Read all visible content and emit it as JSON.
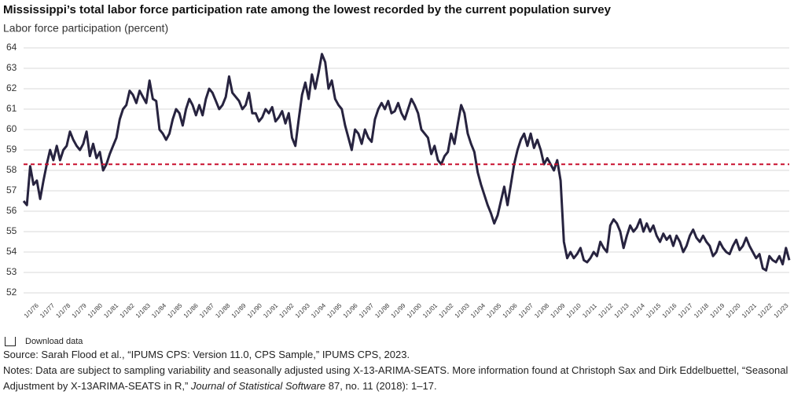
{
  "chart_data": {
    "type": "line",
    "title": "Mississippi’s total labor force participation rate among the lowest recorded by the current population survey",
    "subtitle": "Labor force participation (percent)",
    "x_labels": [
      "1/1/76",
      "1/1/77",
      "1/1/78",
      "1/1/79",
      "1/1/80",
      "1/1/81",
      "1/1/82",
      "1/1/83",
      "1/1/84",
      "1/1/85",
      "1/1/86",
      "1/1/87",
      "1/1/88",
      "1/1/89",
      "1/1/90",
      "1/1/91",
      "1/1/92",
      "1/1/93",
      "1/1/94",
      "1/1/95",
      "1/1/96",
      "1/1/97",
      "1/1/98",
      "1/1/99",
      "1/1/00",
      "1/1/01",
      "1/1/02",
      "1/1/03",
      "1/1/04",
      "1/1/05",
      "1/1/06",
      "1/1/07",
      "1/1/08",
      "1/1/09",
      "1/1/10",
      "1/1/11",
      "1/1/12",
      "1/1/13",
      "1/1/14",
      "1/1/15",
      "1/1/16",
      "1/1/17",
      "1/1/18",
      "1/1/19",
      "1/1/20",
      "1/1/21",
      "1/1/22",
      "1/1/23"
    ],
    "color": "#27233f",
    "values": [
      56.5,
      56.3,
      58.2,
      57.3,
      57.5,
      56.6,
      57.5,
      58.3,
      59.0,
      58.5,
      59.2,
      58.5,
      59.0,
      59.2,
      59.9,
      59.5,
      59.2,
      59.0,
      59.3,
      59.9,
      58.7,
      59.3,
      58.6,
      58.9,
      58.0,
      58.3,
      58.8,
      59.2,
      59.6,
      60.5,
      61.0,
      61.2,
      61.9,
      61.7,
      61.3,
      61.9,
      61.6,
      61.3,
      62.4,
      61.5,
      61.4,
      60.0,
      59.8,
      59.5,
      59.8,
      60.5,
      61.0,
      60.8,
      60.2,
      61.0,
      61.5,
      61.2,
      60.7,
      61.2,
      60.7,
      61.5,
      62.0,
      61.8,
      61.4,
      61.0,
      61.2,
      61.6,
      62.6,
      61.8,
      61.6,
      61.4,
      61.0,
      61.2,
      61.8,
      60.8,
      60.8,
      60.4,
      60.6,
      61.0,
      60.8,
      61.1,
      60.4,
      60.6,
      60.9,
      60.3,
      60.8,
      59.6,
      59.2,
      60.5,
      61.7,
      62.3,
      61.5,
      62.7,
      62.0,
      62.8,
      63.7,
      63.3,
      62.0,
      62.4,
      61.5,
      61.2,
      61.0,
      60.2,
      59.6,
      59.0,
      60.0,
      59.8,
      59.3,
      60.0,
      59.6,
      59.4,
      60.5,
      61.0,
      61.3,
      61.0,
      61.4,
      60.8,
      60.9,
      61.3,
      60.8,
      60.5,
      61.0,
      61.5,
      61.2,
      60.8,
      60.0,
      59.8,
      59.6,
      58.8,
      59.2,
      58.5,
      58.3,
      58.7,
      58.9,
      59.8,
      59.3,
      60.3,
      61.2,
      60.8,
      59.8,
      59.3,
      58.9,
      57.9,
      57.3,
      56.8,
      56.3,
      55.9,
      55.4,
      55.8,
      56.5,
      57.2,
      56.3,
      57.3,
      58.3,
      59.0,
      59.5,
      59.8,
      59.2,
      59.8,
      59.1,
      59.5,
      59.0,
      58.3,
      58.6,
      58.3,
      58.0,
      58.5,
      57.5,
      54.5,
      53.7,
      54.0,
      53.7,
      53.9,
      54.2,
      53.6,
      53.5,
      53.7,
      54.0,
      53.8,
      54.5,
      54.2,
      54.0,
      55.3,
      55.6,
      55.4,
      55.0,
      54.2,
      54.8,
      55.3,
      55.0,
      55.2,
      55.6,
      55.0,
      55.4,
      55.0,
      55.3,
      54.8,
      54.5,
      54.9,
      54.6,
      54.8,
      54.3,
      54.8,
      54.5,
      54.0,
      54.3,
      54.8,
      55.1,
      54.7,
      54.5,
      54.8,
      54.5,
      54.3,
      53.8,
      54.0,
      54.5,
      54.2,
      54.0,
      53.9,
      54.3,
      54.6,
      54.1,
      54.3,
      54.7,
      54.3,
      54.0,
      53.7,
      53.9,
      53.2,
      53.1,
      53.8,
      53.6,
      53.5,
      53.8,
      53.4,
      54.2,
      53.6
    ],
    "reference_line": {
      "value": 58.3,
      "color": "#c8102e"
    },
    "ylim": [
      52,
      64
    ],
    "yticks": [
      52,
      53,
      54,
      55,
      56,
      57,
      58,
      59,
      60,
      61,
      62,
      63,
      64
    ],
    "grid": true
  },
  "download": "Download data",
  "source": "Source: Sarah Flood et al., “IPUMS CPS: Version 11.0, CPS Sample,” IPUMS CPS, 2023.",
  "notes": {
    "before": "Notes: Data are subject to sampling variability and seasonally adjusted using X-13-ARIMA-SEATS. More information found at Christoph Sax and Dirk Eddelbuettel, “Seasonal Adjustment by X-13ARIMA-SEATS in R,” ",
    "journal": "Journal of Statistical Software",
    "after": " 87, no. 11 (2018): 1–17."
  }
}
